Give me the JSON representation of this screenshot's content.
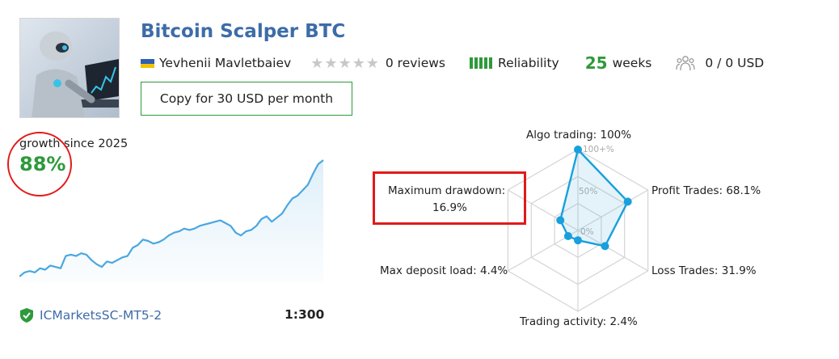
{
  "signal": {
    "title": "Bitcoin Scalper BTC",
    "author": "Yevhenii Mavletbaiev",
    "reviews": "0 reviews",
    "reliability_label": "Reliability",
    "weeks_value": "25",
    "weeks_label": "weeks",
    "subscribers": "0 / 0 USD",
    "copy_button": "Copy for 30 USD per month",
    "colors": {
      "title": "#3d6ca8",
      "accent": "#2e9a3a",
      "highlight": "#e21a1a",
      "chart": "#4aa7e0"
    },
    "icons": [
      "ukraine-flag-icon",
      "star-icon",
      "reliability-bars-icon",
      "people-icon",
      "shield-check-icon"
    ]
  },
  "growth": {
    "label": "growth since 2025",
    "value": "88%"
  },
  "broker": {
    "name": "ICMarketsSC-MT5-2",
    "leverage": "1:300"
  },
  "radar": {
    "algo_trading": "Algo trading: 100%",
    "profit_trades": "Profit Trades: 68.1%",
    "loss_trades": "Loss Trades: 31.9%",
    "trading_activity": "Trading activity: 2.4%",
    "max_deposit_load": "Max deposit load: 4.4%",
    "max_drawdown_name": "Maximum drawdown:",
    "max_drawdown_value": "16.9%",
    "scale_labels": [
      "100+%",
      "50%",
      "0%"
    ]
  },
  "chart_data": [
    {
      "type": "line",
      "title": "",
      "series": [
        {
          "values": [
            3,
            6,
            7,
            6,
            9,
            8,
            11,
            10,
            9,
            18,
            19,
            18,
            20,
            19,
            15,
            12,
            10,
            14,
            13,
            15,
            17,
            18,
            24,
            26,
            30,
            29,
            27,
            28,
            30,
            33,
            35,
            36,
            38,
            37,
            38,
            40,
            41,
            42,
            43,
            44,
            42,
            40,
            35,
            33,
            36,
            37,
            40,
            45,
            47,
            43,
            46,
            49,
            55,
            60,
            62,
            66,
            70,
            78,
            85,
            88
          ]
        }
      ]
    },
    {
      "type": "radar",
      "axes": [
        "Algo trading",
        "Profit Trades",
        "Loss Trades",
        "Trading activity",
        "Max deposit load",
        "Maximum drawdown"
      ],
      "values": [
        100,
        68.1,
        31.9,
        2.4,
        4.4,
        16.9
      ],
      "scale": [
        0,
        50,
        100
      ]
    }
  ]
}
